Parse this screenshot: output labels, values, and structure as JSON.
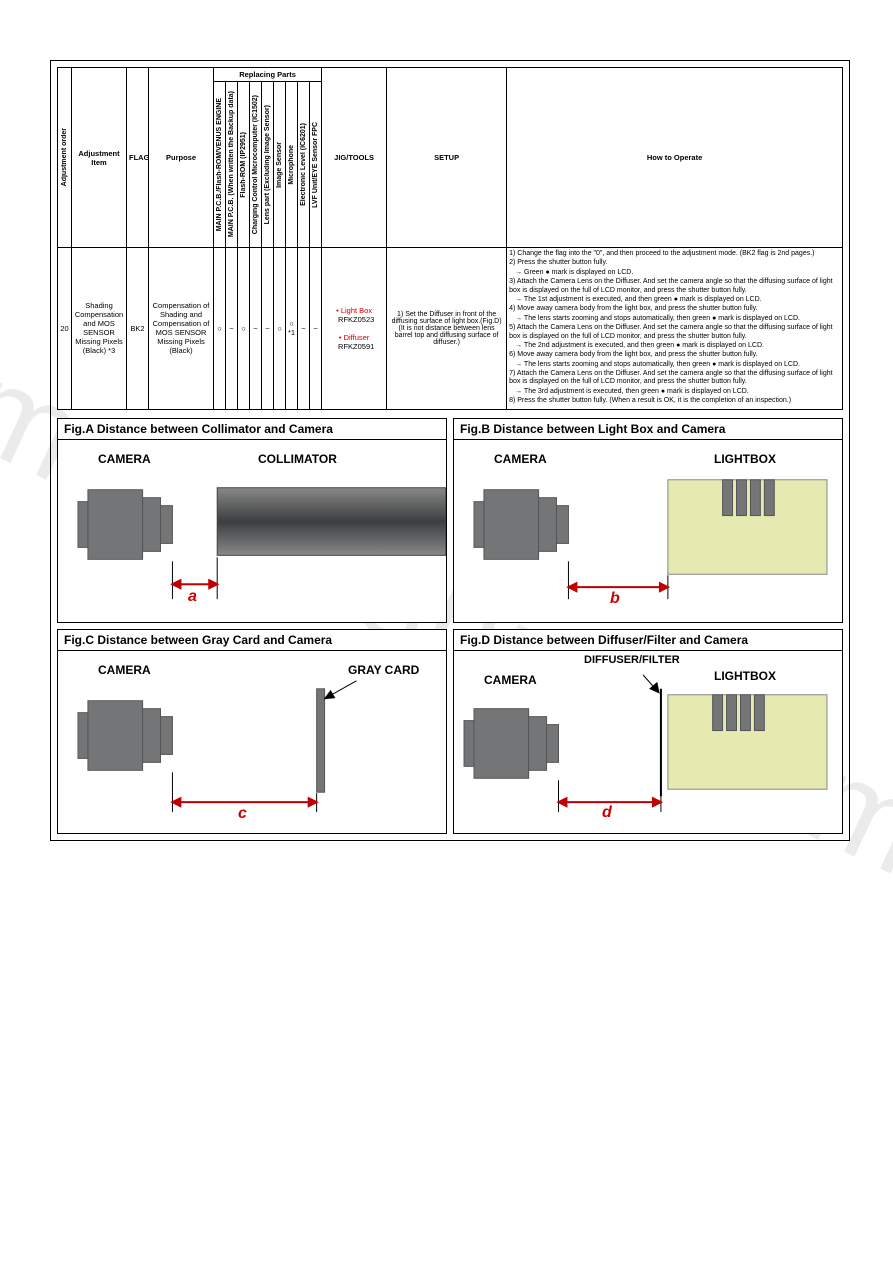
{
  "watermark_text": "manualshive.com",
  "table": {
    "replacing_parts_header": "Replacing Parts",
    "headers": {
      "adjustment_order": "Adjustment order",
      "adjustment_item": "Adjustment Item",
      "flag": "FLAG",
      "purpose": "Purpose",
      "main_pcb_flash": "MAIN P.C.B./Flash-ROM/VENUS ENGINE",
      "main_pcb_backup": "MAIN P.C.B. (When written the Backup data)",
      "flash_rom": "Flash-ROM (IP2951)",
      "charging_mcu": "Charging Control Microcomputer (IC1502)",
      "lens_part": "Lens part (Excluding Image Sensor)",
      "image_sensor": "Image Sensor",
      "microphone": "Microphone",
      "elec_level": "Electronic Level (IC6201)",
      "lvf_eye": "LVF Unit/EYE Sensor FPC",
      "jig_tools": "JIG/TOOLS",
      "setup": "SETUP",
      "how_to_operate": "How to Operate"
    },
    "row": {
      "order": "20",
      "item": "Shading Compensation and MOS SENSOR Missing Pixels (Black) *3",
      "flag": "BK2",
      "purpose": "Compensation of Shading and Compensation of MOS SENSOR Missing Pixels (Black)",
      "c1": "○",
      "c2": "−",
      "c3": "○",
      "c4": "−",
      "c5": "−",
      "c6": "○",
      "c7": "○ *1",
      "c8": "−",
      "c9": "−",
      "jig": {
        "lightbox_label": "Light Box",
        "lightbox_pn": "RFKZ0523",
        "diffuser_label": "Diffuser",
        "diffuser_pn": "RFKZ0591"
      },
      "setup": "1) Set the Diffuser in front of the diffusing surface of light box.(Fig.D) (It is not distance between lens barrel top and diffusing surface of diffuser.)",
      "operate": [
        "1) Change the flag into the \"0\", and then proceed to the adjustment mode. (BK2 flag is 2nd pages.)",
        "2) Press the shutter button fully.",
        "→ Green ● mark is displayed on LCD.",
        "3) Attach the Camera Lens on the Diffuser. And set the camera angle so that the diffusing surface of light box is displayed on the full of LCD monitor, and press the shutter button fully.",
        "→ The 1st adjustment is executed, and then green ● mark is displayed on LCD.",
        "4) Move away camera body from the light box, and press the shutter button fully.",
        "→ The lens starts zooming and stops automatically, then green ● mark is displayed on LCD.",
        "5) Attach the Camera Lens on the Diffuser. And set the camera angle so that the diffusing surface of light box is displayed on the full of LCD monitor, and press the shutter button fully.",
        "→ The 2nd adjustment is executed, and then green ● mark is displayed on LCD.",
        "6) Move away camera body from the light box, and press the shutter button fully.",
        "→ The lens starts zooming and stops automatically, then green ● mark is displayed on LCD.",
        "7) Attach the Camera Lens on the Diffuser. And set the camera angle so that the diffusing surface of light box is displayed on the full of LCD monitor, and press the shutter button fully.",
        "→ The 3rd adjustment is executed, then green ● mark is displayed on LCD.",
        "8) Press the shutter button fully. (When a result is OK, it is the completion of an inspection.)"
      ]
    }
  },
  "figs": {
    "a": {
      "title": "Fig.A   Distance between Collimator and Camera",
      "camera_label": "CAMERA",
      "right_label": "COLLIMATOR",
      "letter": "a",
      "camera_color": "#737577",
      "collimator_top": "#7a7c7e",
      "collimator_mid": "#4c4e50",
      "arrow_color": "#c00000"
    },
    "b": {
      "title": "Fig.B   Distance between Light Box and Camera",
      "camera_label": "CAMERA",
      "right_label": "LIGHTBOX",
      "letter": "b",
      "lightbox_fill": "#e6e9b0",
      "panel_color": "#737577",
      "arrow_color": "#c00000"
    },
    "c": {
      "title": "Fig.C   Distance between Gray Card and Camera",
      "camera_label": "CAMERA",
      "right_label": "GRAY CARD",
      "letter": "c",
      "card_color": "#737577",
      "arrow_color": "#c00000"
    },
    "d": {
      "title": "Fig.D   Distance between Diffuser/Filter and Camera",
      "camera_label": "CAMERA",
      "diffuser_label": "DIFFUSER/FILTER",
      "right_label": "LIGHTBOX",
      "letter": "d",
      "lightbox_fill": "#e6e9b0",
      "panel_color": "#737577",
      "diffuser_line": "#000",
      "arrow_color": "#c00000"
    }
  }
}
